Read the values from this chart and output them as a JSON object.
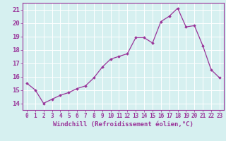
{
  "x": [
    0,
    1,
    2,
    3,
    4,
    5,
    6,
    7,
    8,
    9,
    10,
    11,
    12,
    13,
    14,
    15,
    16,
    17,
    18,
    19,
    20,
    21,
    22,
    23
  ],
  "y": [
    15.5,
    15.0,
    14.0,
    14.3,
    14.6,
    14.8,
    15.1,
    15.3,
    15.9,
    16.7,
    17.3,
    17.5,
    17.7,
    18.9,
    18.9,
    18.5,
    20.1,
    20.5,
    21.1,
    19.7,
    19.8,
    18.3,
    16.5,
    15.9
  ],
  "xlabel": "Windchill (Refroidissement éolien,°C)",
  "ylim": [
    13.5,
    21.5
  ],
  "yticks": [
    14,
    15,
    16,
    17,
    18,
    19,
    20,
    21
  ],
  "xticks": [
    0,
    1,
    2,
    3,
    4,
    5,
    6,
    7,
    8,
    9,
    10,
    11,
    12,
    13,
    14,
    15,
    16,
    17,
    18,
    19,
    20,
    21,
    22,
    23
  ],
  "line_color": "#993399",
  "marker": "D",
  "marker_size": 1.8,
  "bg_color": "#d6f0f0",
  "grid_color": "#bbdddd",
  "axis_label_color": "#993399",
  "tick_label_color": "#993399",
  "xlabel_fontsize": 6.5,
  "ytick_fontsize": 6.5,
  "xtick_fontsize": 5.5,
  "xlim": [
    -0.5,
    23.5
  ]
}
